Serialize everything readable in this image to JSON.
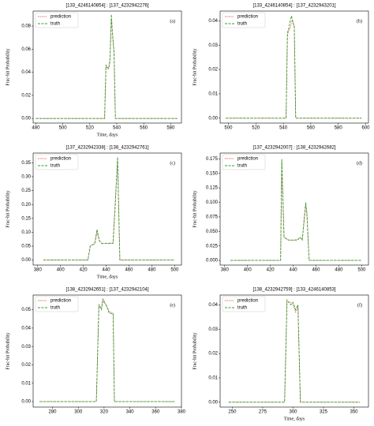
{
  "chart_data": [
    {
      "type": "line",
      "title": "[133_4246140854] : [137_4232942276]",
      "label": "(a)",
      "xlabel": "Time, days",
      "ylabel": "Frac-hit Probability",
      "x": [
        480,
        490,
        500,
        510,
        520,
        530,
        531,
        532,
        533,
        534,
        535,
        536,
        537,
        538,
        539,
        540,
        550,
        560,
        570,
        580,
        585
      ],
      "series": [
        {
          "name": "prediction",
          "color": "#e0504a",
          "values": [
            0,
            0,
            0,
            0,
            0,
            0,
            0,
            0.045,
            0.044,
            0.044,
            0.052,
            0.085,
            0.072,
            0.055,
            0,
            0,
            0,
            0,
            0,
            0,
            0
          ]
        },
        {
          "name": "truth",
          "color": "#2ca02c",
          "values": [
            0,
            0,
            0,
            0,
            0,
            0,
            0,
            0.046,
            0.044,
            0.043,
            0.05,
            0.09,
            0.07,
            0.058,
            0,
            0,
            0,
            0,
            0,
            0,
            0
          ]
        }
      ],
      "xlim": [
        478,
        588
      ],
      "ylim": [
        -0.004,
        0.093
      ],
      "xticks": [
        480,
        500,
        520,
        540,
        560,
        580
      ],
      "yticks": [
        {
          "value": 0,
          "label": "0.00"
        },
        {
          "value": 0.02,
          "label": "0.02"
        },
        {
          "value": 0.04,
          "label": "0.04"
        },
        {
          "value": 0.06,
          "label": "0.06"
        },
        {
          "value": 0.08,
          "label": "0.08"
        }
      ]
    },
    {
      "type": "line",
      "title": "[133_4246140854] : [137_4232943201]",
      "label": "(b)",
      "ylabel": "Frac-hit Probability",
      "x": [
        498,
        510,
        520,
        530,
        540,
        542,
        543,
        544,
        545,
        546,
        547,
        548,
        549,
        550,
        560,
        570,
        580,
        590,
        597
      ],
      "series": [
        {
          "name": "prediction",
          "color": "#e0504a",
          "values": [
            0,
            0,
            0,
            0,
            0,
            0,
            0.034,
            0.036,
            0.037,
            0.04,
            0.04,
            0.037,
            0,
            0,
            0,
            0,
            0,
            0,
            0
          ]
        },
        {
          "name": "truth",
          "color": "#2ca02c",
          "values": [
            0,
            0,
            0,
            0,
            0,
            0,
            0.035,
            0.037,
            0.04,
            0.042,
            0.039,
            0.038,
            0,
            0,
            0,
            0,
            0,
            0,
            0
          ]
        }
      ],
      "xlim": [
        494,
        602
      ],
      "ylim": [
        -0.002,
        0.044
      ],
      "xticks": [
        500,
        520,
        540,
        560,
        580,
        600
      ],
      "yticks": [
        {
          "value": 0,
          "label": "0.00"
        },
        {
          "value": 0.01,
          "label": "0.01"
        },
        {
          "value": 0.02,
          "label": "0.02"
        },
        {
          "value": 0.03,
          "label": "0.03"
        },
        {
          "value": 0.04,
          "label": "0.04"
        }
      ]
    },
    {
      "type": "line",
      "title": "[137_4232942338] : [138_4232942761]",
      "label": "(c)",
      "xlabel": "Time, days",
      "ylabel": "Frac-hit Probability",
      "x": [
        385,
        400,
        420,
        424,
        426,
        430,
        432,
        434,
        436,
        440,
        446,
        448,
        450,
        452,
        460,
        480,
        500
      ],
      "series": [
        {
          "name": "prediction",
          "color": "#e0504a",
          "values": [
            0,
            0,
            0,
            0,
            0.05,
            0.058,
            0.1,
            0.07,
            0.06,
            0.06,
            0.062,
            0.21,
            0.36,
            0,
            0,
            0,
            0
          ]
        },
        {
          "name": "truth",
          "color": "#2ca02c",
          "values": [
            0,
            0,
            0,
            0,
            0.05,
            0.06,
            0.11,
            0.07,
            0.06,
            0.06,
            0.06,
            0.2,
            0.37,
            0,
            0,
            0,
            0
          ]
        }
      ],
      "xlim": [
        376,
        506
      ],
      "ylim": [
        -0.018,
        0.385
      ],
      "xticks": [
        380,
        400,
        420,
        440,
        460,
        480,
        500
      ],
      "yticks": [
        {
          "value": 0,
          "label": "0.00"
        },
        {
          "value": 0.05,
          "label": "0.05"
        },
        {
          "value": 0.1,
          "label": "0.10"
        },
        {
          "value": 0.15,
          "label": "0.15"
        },
        {
          "value": 0.2,
          "label": "0.20"
        },
        {
          "value": 0.25,
          "label": "0.25"
        },
        {
          "value": 0.3,
          "label": "0.30"
        },
        {
          "value": 0.35,
          "label": "0.35"
        }
      ]
    },
    {
      "type": "line",
      "title": "[137_4232942007] : [138_4232942682]",
      "label": "(d)",
      "ylabel": "Frac-hit Probability",
      "x": [
        385,
        400,
        420,
        429,
        430,
        432,
        436,
        440,
        444,
        446,
        448,
        450,
        451,
        452,
        454,
        460,
        480,
        500
      ],
      "series": [
        {
          "name": "prediction",
          "color": "#e0504a",
          "values": [
            0,
            0,
            0,
            0,
            0.17,
            0.04,
            0.035,
            0.035,
            0.036,
            0.04,
            0.036,
            0.075,
            0.095,
            0.085,
            0,
            0,
            0,
            0
          ]
        },
        {
          "name": "truth",
          "color": "#2ca02c",
          "values": [
            0,
            0,
            0,
            0,
            0.175,
            0.04,
            0.035,
            0.035,
            0.035,
            0.04,
            0.035,
            0.08,
            0.1,
            0.08,
            0,
            0,
            0,
            0
          ]
        }
      ],
      "xlim": [
        376,
        506
      ],
      "ylim": [
        -0.008,
        0.185
      ],
      "xticks": [
        380,
        400,
        420,
        440,
        460,
        480,
        500
      ],
      "yticks": [
        {
          "value": 0,
          "label": "0.000"
        },
        {
          "value": 0.025,
          "label": "0.025"
        },
        {
          "value": 0.05,
          "label": "0.050"
        },
        {
          "value": 0.075,
          "label": "0.075"
        },
        {
          "value": 0.1,
          "label": "0.100"
        },
        {
          "value": 0.125,
          "label": "0.125"
        },
        {
          "value": 0.15,
          "label": "0.150"
        },
        {
          "value": 0.175,
          "label": "0.175"
        }
      ]
    },
    {
      "type": "line",
      "title": "[138_4232942651] : [137_4232942104]",
      "label": "(e)",
      "ylabel": "Frac-hit Probability",
      "x": [
        270,
        290,
        310,
        314,
        316,
        318,
        319,
        320,
        322,
        324,
        327,
        328,
        340,
        360,
        375
      ],
      "series": [
        {
          "name": "prediction",
          "color": "#e0504a",
          "values": [
            0,
            0,
            0,
            0,
            0.052,
            0.051,
            0.055,
            0.055,
            0.052,
            0.049,
            0.048,
            0,
            0,
            0,
            0
          ]
        },
        {
          "name": "truth",
          "color": "#2ca02c",
          "values": [
            0,
            0,
            0,
            0,
            0.053,
            0.05,
            0.056,
            0.054,
            0.052,
            0.048,
            0.048,
            0,
            0,
            0,
            0
          ]
        }
      ],
      "xlim": [
        265,
        380
      ],
      "ylim": [
        -0.003,
        0.058
      ],
      "xticks": [
        280,
        300,
        320,
        340,
        360,
        380
      ],
      "yticks": [
        {
          "value": 0,
          "label": "0.00"
        },
        {
          "value": 0.01,
          "label": "0.01"
        },
        {
          "value": 0.02,
          "label": "0.02"
        },
        {
          "value": 0.03,
          "label": "0.03"
        },
        {
          "value": 0.04,
          "label": "0.04"
        },
        {
          "value": 0.05,
          "label": "0.05"
        }
      ]
    },
    {
      "type": "line",
      "title": "[138_4232942759] : [133_4246140853]",
      "label": "(f)",
      "xlabel": "Time, days",
      "ylabel": "Frac-hit Probability",
      "x": [
        247,
        270,
        290,
        293,
        295,
        298,
        300,
        302,
        304,
        306,
        320,
        340,
        355
      ],
      "series": [
        {
          "name": "prediction",
          "color": "#e0504a",
          "values": [
            0,
            0,
            0,
            0,
            0.041,
            0.041,
            0.04,
            0.037,
            0.039,
            0,
            0,
            0,
            0
          ]
        },
        {
          "name": "truth",
          "color": "#2ca02c",
          "values": [
            0,
            0,
            0,
            0,
            0.042,
            0.04,
            0.041,
            0.038,
            0.04,
            0,
            0,
            0,
            0
          ]
        }
      ],
      "xlim": [
        240,
        362
      ],
      "ylim": [
        -0.002,
        0.044
      ],
      "xticks": [
        250,
        275,
        300,
        325,
        350
      ],
      "yticks": [
        {
          "value": 0,
          "label": "0.00"
        },
        {
          "value": 0.01,
          "label": "0.01"
        },
        {
          "value": 0.02,
          "label": "0.02"
        },
        {
          "value": 0.03,
          "label": "0.03"
        },
        {
          "value": 0.04,
          "label": "0.04"
        }
      ]
    }
  ]
}
